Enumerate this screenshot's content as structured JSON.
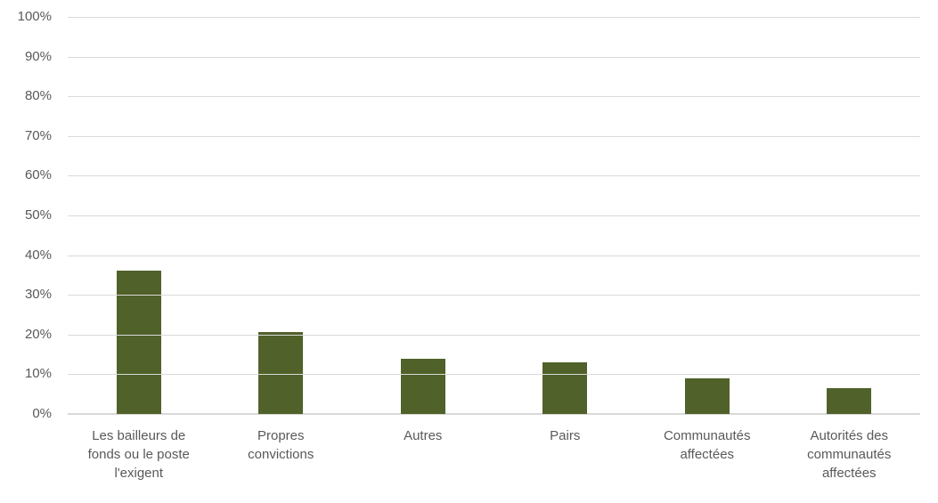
{
  "chart_data": {
    "type": "bar",
    "title": "",
    "xlabel": "",
    "ylabel": "",
    "categories": [
      "Les bailleurs de fonds ou le poste l'exigent",
      "Propres convictions",
      "Autres",
      "Pairs",
      "Communautés affectées",
      "Autorités des communautés affectées"
    ],
    "values": [
      36.2,
      20.6,
      14,
      13,
      9,
      6.5
    ],
    "ylim": [
      0,
      100
    ],
    "ytick_step": 10,
    "ytick_labels": [
      "0%",
      "10%",
      "20%",
      "30%",
      "40%",
      "50%",
      "60%",
      "70%",
      "80%",
      "90%",
      "100%"
    ],
    "grid": true,
    "legend": false,
    "legend_position": "none",
    "value_format": "percent"
  },
  "display": {
    "categories_wrapped": [
      "Les bailleurs de\nfonds ou le poste\nl'exigent",
      "Propres\nconvictions",
      "Autres",
      "Pairs",
      "Communautés\naffectées",
      "Autorités des\ncommunautés\naffectées"
    ]
  },
  "colors": {
    "bar": "#506129",
    "gridline": "#D9D9D9",
    "axis_line": "#D9D9D9",
    "tick_text": "#595959",
    "background": "#FFFFFF"
  }
}
